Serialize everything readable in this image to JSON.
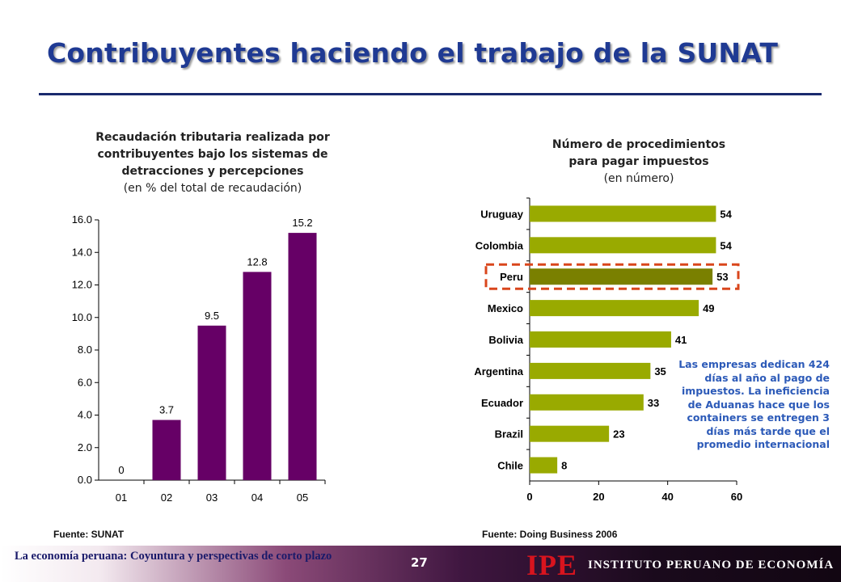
{
  "page_title": "Contribuyentes haciendo el trabajo de la SUNAT",
  "left_chart_title": {
    "line1": "Recaudación tributaria realizada por",
    "line2": "contribuyentes bajo los sistemas de",
    "line3": "detracciones y percepciones",
    "line4": "(en % del total de recaudación)"
  },
  "right_chart_title": {
    "line1": "Número de procedimientos",
    "line2": "para pagar impuestos",
    "line3": "(en número)"
  },
  "chart_data": [
    {
      "type": "bar",
      "orientation": "vertical",
      "categories": [
        "01",
        "02",
        "03",
        "04",
        "05"
      ],
      "values": [
        0,
        3.7,
        9.5,
        12.8,
        15.2
      ],
      "data_labels": [
        "0",
        "3.7",
        "9.5",
        "12.8",
        "15.2"
      ],
      "ylim": [
        0,
        16
      ],
      "yticks": [
        "0.0",
        "2.0",
        "4.0",
        "6.0",
        "8.0",
        "10.0",
        "12.0",
        "14.0",
        "16.0"
      ],
      "bar_color": "#660066",
      "grid": false
    },
    {
      "type": "bar",
      "orientation": "horizontal",
      "categories": [
        "Uruguay",
        "Colombia",
        "Peru",
        "Mexico",
        "Bolivia",
        "Argentina",
        "Ecuador",
        "Brazil",
        "Chile"
      ],
      "values": [
        54,
        54,
        53,
        49,
        41,
        35,
        33,
        23,
        8
      ],
      "xlim": [
        0,
        60
      ],
      "xticks": [
        "0",
        "20",
        "40",
        "60"
      ],
      "bar_color": "#99aa00",
      "highlight": {
        "category": "Peru",
        "color": "#7a8000",
        "box_color": "#d9461c"
      },
      "grid": false
    }
  ],
  "note_text": "Las empresas dedican 424 días al año al pago de impuestos. La ineficiencia de Aduanas hace que los containers se entregen 3 días más tarde que el promedio internacional",
  "sources": {
    "left": "Fuente: SUNAT",
    "right": "Fuente: Doing Business 2006"
  },
  "footer": {
    "text": "La economía peruana: Coyuntura y perspectivas de corto plazo",
    "page_number": "27",
    "logo": "IPE",
    "institute": "INSTITUTO PERUANO DE ECONOMÍA"
  }
}
